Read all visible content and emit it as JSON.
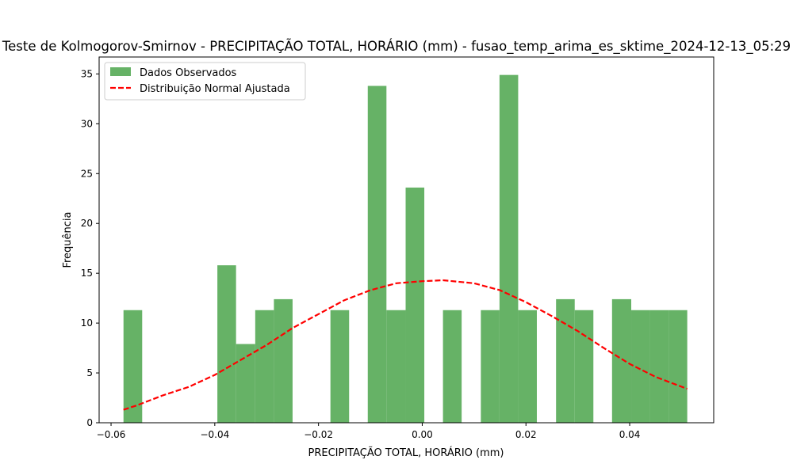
{
  "chart_data": {
    "type": "bar",
    "title": "Teste de Kolmogorov-Smirnov - PRECIPITAÇÃO TOTAL, HORÁRIO (mm) - fusao_temp_arima_es_sktime_2024-12-13_05:29",
    "xlabel": "PRECIPITAÇÃO TOTAL, HORÁRIO (mm)",
    "ylabel": "Frequência",
    "xlim": [
      -0.0623,
      0.0562
    ],
    "ylim": [
      0,
      36.7
    ],
    "xticks": [
      -0.06,
      -0.04,
      -0.02,
      0.0,
      0.02,
      0.04
    ],
    "xtick_labels": [
      "−0.06",
      "−0.04",
      "−0.02",
      "0.00",
      "0.02",
      "0.04"
    ],
    "yticks": [
      0,
      5,
      10,
      15,
      20,
      25,
      30,
      35
    ],
    "ytick_labels": [
      "0",
      "5",
      "10",
      "15",
      "20",
      "25",
      "30",
      "35"
    ],
    "grid": false,
    "legend_position": "upper-left",
    "histogram": {
      "name": "Dados Observados",
      "color": "#66b266",
      "bin_edges": [
        -0.0576,
        -0.054,
        -0.0504,
        -0.0467,
        -0.0431,
        -0.0395,
        -0.0359,
        -0.0322,
        -0.0286,
        -0.025,
        -0.0214,
        -0.0177,
        -0.0141,
        -0.0105,
        -0.0069,
        -0.0032,
        0.0004,
        0.004,
        0.0076,
        0.0113,
        0.0149,
        0.0185,
        0.0221,
        0.0258,
        0.0294,
        0.033,
        0.0366,
        0.0403,
        0.0439,
        0.0475,
        0.0511
      ],
      "values": [
        11.3,
        0,
        0,
        0,
        0,
        15.8,
        7.9,
        11.3,
        12.4,
        0,
        0,
        11.3,
        0,
        33.8,
        11.3,
        23.6,
        0,
        11.3,
        0,
        11.3,
        34.9,
        11.3,
        0,
        12.4,
        11.3,
        0,
        12.4,
        11.3,
        11.3,
        11.3
      ]
    },
    "fit": {
      "name": "Distribuição Normal Ajustada",
      "color": "#ff0000",
      "style": "dashed",
      "x": [
        -0.0576,
        -0.055,
        -0.05,
        -0.045,
        -0.04,
        -0.035,
        -0.03,
        -0.025,
        -0.02,
        -0.015,
        -0.01,
        -0.005,
        0.0,
        0.004,
        0.01,
        0.015,
        0.02,
        0.025,
        0.03,
        0.035,
        0.04,
        0.045,
        0.0511
      ],
      "y": [
        1.3,
        1.75,
        2.75,
        3.6,
        4.8,
        6.3,
        7.8,
        9.5,
        10.9,
        12.3,
        13.3,
        14.0,
        14.2,
        14.3,
        14.0,
        13.3,
        12.1,
        10.7,
        9.2,
        7.5,
        5.9,
        4.6,
        3.4
      ]
    }
  }
}
